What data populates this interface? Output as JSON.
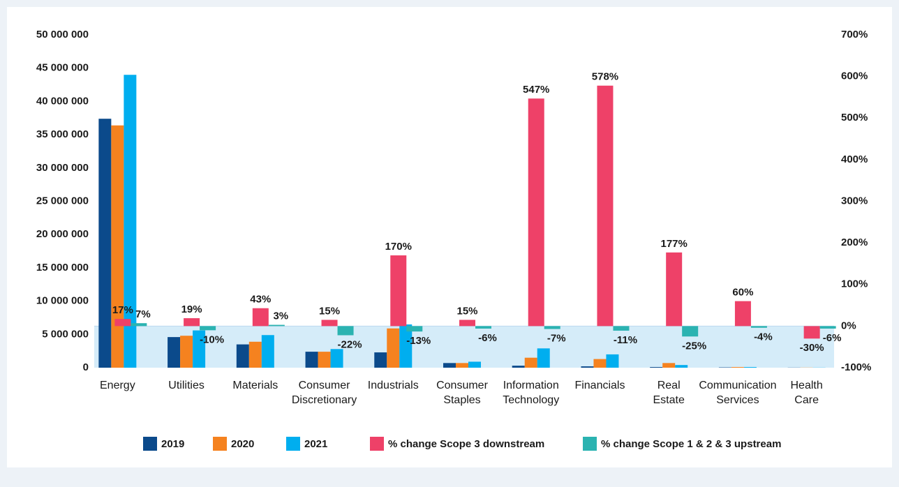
{
  "chart_data": {
    "type": "bar",
    "categories": [
      "Energy",
      "Utilities",
      "Materials",
      "Consumer Discretionary",
      "Industrials",
      "Consumer Staples",
      "Information Technology",
      "Financials",
      "Real Estate",
      "Communication Services",
      "Health Care"
    ],
    "series": [
      {
        "name": "2019",
        "color": "#0b4a8b",
        "values": [
          37400000,
          4600000,
          3500000,
          2400000,
          2300000,
          700000,
          300000,
          200000,
          100000,
          50000,
          20000
        ]
      },
      {
        "name": "2020",
        "color": "#f5821f",
        "values": [
          36400000,
          4800000,
          3900000,
          2400000,
          5900000,
          700000,
          1500000,
          1300000,
          700000,
          100000,
          20000
        ]
      },
      {
        "name": "2021",
        "color": "#00aeef",
        "values": [
          44000000,
          5600000,
          4900000,
          2800000,
          6500000,
          900000,
          2900000,
          2000000,
          400000,
          100000,
          20000
        ]
      },
      {
        "name": "% change Scope 3 downstream",
        "color": "#ee4168",
        "axis": "y2",
        "values": [
          17,
          19,
          43,
          15,
          170,
          15,
          547,
          578,
          177,
          60,
          -30
        ],
        "value_labels": [
          "17%",
          "19%",
          "43%",
          "15%",
          "170%",
          "15%",
          "547%",
          "578%",
          "177%",
          "60%",
          "-30%"
        ]
      },
      {
        "name": "% change Scope 1 & 2 & 3 upstream",
        "color": "#2bb3b1",
        "axis": "y2",
        "values": [
          7,
          -10,
          3,
          -22,
          -13,
          -6,
          -7,
          -11,
          -25,
          -4,
          -6
        ],
        "value_labels": [
          "7%",
          "-10%",
          "3%",
          "-22%",
          "-13%",
          "-6%",
          "-7%",
          "-11%",
          "-25%",
          "-4%",
          "-6%"
        ]
      }
    ],
    "ylim": [
      0,
      50000000
    ],
    "yticks": [
      0,
      {
        "value": 5000000,
        "label": "5 000 000"
      },
      {
        "value": 10000000,
        "label": "10 000 000"
      },
      {
        "value": 15000000,
        "label": "15 000 000"
      },
      {
        "value": 20000000,
        "label": "20 000 000"
      },
      {
        "value": 25000000,
        "label": "25 000 000"
      },
      {
        "value": 30000000,
        "label": "30 000 000"
      },
      {
        "value": 35000000,
        "label": "35 000 000"
      },
      {
        "value": 40000000,
        "label": "40 000 000"
      },
      {
        "value": 45000000,
        "label": "45 000 000"
      },
      {
        "value": 50000000,
        "label": "50 000 000"
      }
    ],
    "y2lim": [
      -100,
      700
    ],
    "y2ticks": [
      {
        "value": -100,
        "label": "-100%"
      },
      {
        "value": 0,
        "label": "0%"
      },
      {
        "value": 100,
        "label": "100%"
      },
      {
        "value": 200,
        "label": "200%"
      },
      {
        "value": 300,
        "label": "300%"
      },
      {
        "value": 400,
        "label": "400%"
      },
      {
        "value": 500,
        "label": "500%"
      },
      {
        "value": 600,
        "label": "600%"
      },
      {
        "value": 700,
        "label": "700%"
      }
    ],
    "legend": "bottom"
  }
}
